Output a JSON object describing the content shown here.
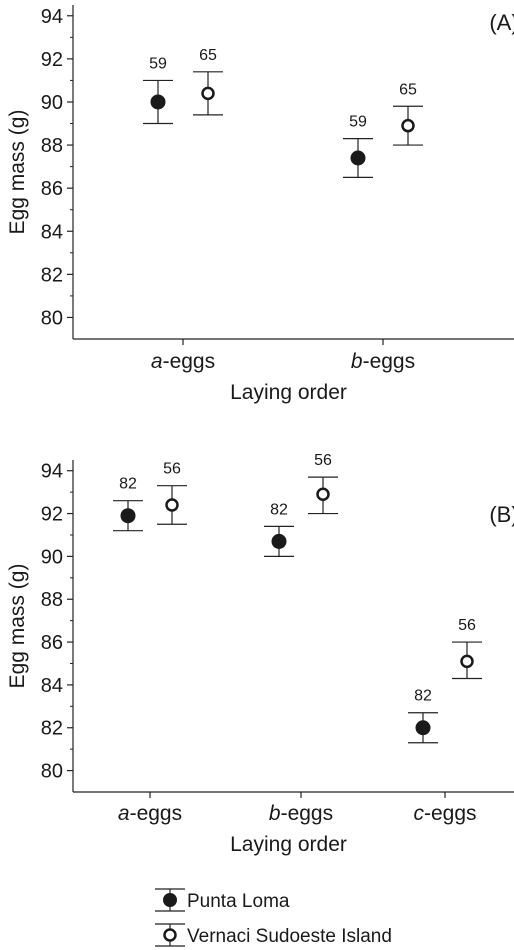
{
  "chart_data": [
    {
      "type": "scatter",
      "panel_label": "(A)",
      "xlabel": "Laying order",
      "ylabel": "Egg mass (g)",
      "ylim": [
        79,
        94.5
      ],
      "yticks": [
        "80",
        "82",
        "84",
        "86",
        "88",
        "90",
        "92",
        "94"
      ],
      "categories": [
        "a-eggs",
        "b-eggs"
      ],
      "grid": false,
      "series": [
        {
          "name": "Punta Loma",
          "marker": "filled-circle",
          "values": [
            90.0,
            87.4
          ],
          "lower": [
            89.0,
            86.5
          ],
          "upper": [
            91.0,
            88.3
          ],
          "n": [
            "59",
            "59"
          ]
        },
        {
          "name": "Vernaci Sudoeste Island",
          "marker": "open-circle",
          "values": [
            90.4,
            88.9
          ],
          "lower": [
            89.4,
            88.0
          ],
          "upper": [
            91.4,
            89.8
          ],
          "n": [
            "65",
            "65"
          ]
        }
      ]
    },
    {
      "type": "scatter",
      "panel_label": "(B)",
      "xlabel": "Laying order",
      "ylabel": "Egg mass (g)",
      "ylim": [
        79,
        94.5
      ],
      "yticks": [
        "80",
        "82",
        "84",
        "86",
        "88",
        "90",
        "92",
        "94"
      ],
      "categories": [
        "a-eggs",
        "b-eggs",
        "c-eggs"
      ],
      "grid": false,
      "series": [
        {
          "name": "Punta Loma",
          "marker": "filled-circle",
          "values": [
            91.9,
            90.7,
            82.0
          ],
          "lower": [
            91.2,
            90.0,
            81.3
          ],
          "upper": [
            92.6,
            91.4,
            82.7
          ],
          "n": [
            "82",
            "82",
            "82"
          ]
        },
        {
          "name": "Vernaci Sudoeste Island",
          "marker": "open-circle",
          "values": [
            92.4,
            92.9,
            85.1
          ],
          "lower": [
            91.5,
            92.0,
            84.3
          ],
          "upper": [
            93.3,
            93.7,
            86.0
          ],
          "n": [
            "56",
            "56",
            "56"
          ]
        }
      ]
    }
  ],
  "legend": {
    "items": [
      {
        "label": "Punta Loma",
        "marker": "filled-circle"
      },
      {
        "label": "Vernaci Sudoeste Island",
        "marker": "open-circle"
      }
    ]
  }
}
